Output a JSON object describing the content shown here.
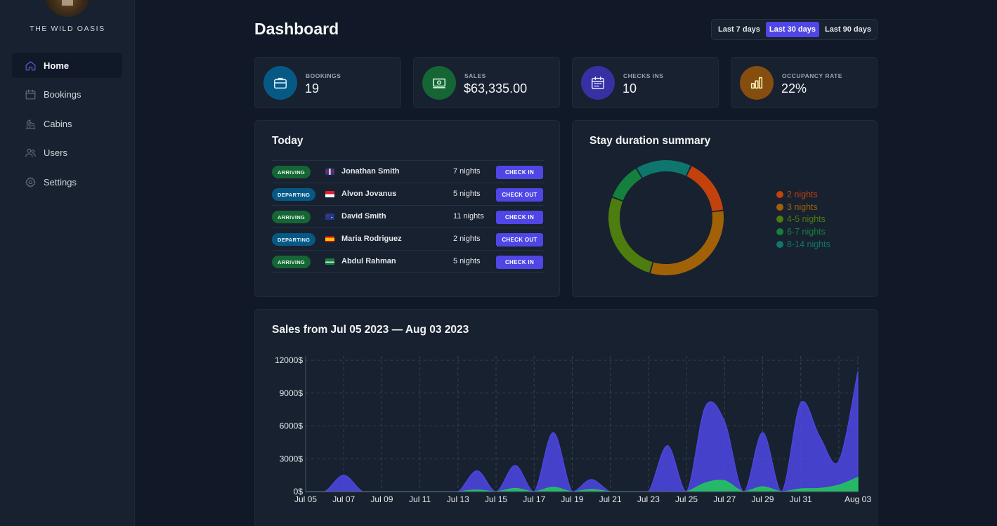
{
  "brand": {
    "name": "THE WILD OASIS"
  },
  "sidebar": {
    "items": [
      {
        "label": "Home",
        "icon": "home-icon",
        "active": true
      },
      {
        "label": "Bookings",
        "icon": "calendar-icon",
        "active": false
      },
      {
        "label": "Cabins",
        "icon": "building-icon",
        "active": false
      },
      {
        "label": "Users",
        "icon": "users-icon",
        "active": false
      },
      {
        "label": "Settings",
        "icon": "gear-icon",
        "active": false
      }
    ]
  },
  "header": {
    "title": "Dashboard",
    "filters": [
      {
        "label": "Last 7 days",
        "active": false
      },
      {
        "label": "Last 30 days",
        "active": true
      },
      {
        "label": "Last 90 days",
        "active": false
      }
    ]
  },
  "stats": [
    {
      "label": "BOOKINGS",
      "value": "19",
      "icon": "briefcase-icon",
      "bg": "#075985",
      "stroke": "#e0f2fe"
    },
    {
      "label": "SALES",
      "value": "$63,335.00",
      "icon": "banknotes-icon",
      "bg": "#166534",
      "stroke": "#dcfce7"
    },
    {
      "label": "CHECKS INS",
      "value": "10",
      "icon": "calendar-days-icon",
      "bg": "#3730a3",
      "stroke": "#e0e7ff"
    },
    {
      "label": "OCCUPANCY RATE",
      "value": "22%",
      "icon": "chart-bar-icon",
      "bg": "#854d0e",
      "stroke": "#fef9c3"
    }
  ],
  "today": {
    "title": "Today",
    "rows": [
      {
        "status": "ARRIVING",
        "type": "arriving",
        "flag": "uk",
        "guest": "Jonathan Smith",
        "nights": "7 nights",
        "action": "CHECK IN"
      },
      {
        "status": "DEPARTING",
        "type": "departing",
        "flag": "id",
        "guest": "Alvon Jovanus",
        "nights": "5 nights",
        "action": "CHECK OUT"
      },
      {
        "status": "ARRIVING",
        "type": "arriving",
        "flag": "au",
        "guest": "David Smith",
        "nights": "11 nights",
        "action": "CHECK IN"
      },
      {
        "status": "DEPARTING",
        "type": "departing",
        "flag": "es",
        "guest": "Maria Rodriguez",
        "nights": "2 nights",
        "action": "CHECK OUT"
      },
      {
        "status": "ARRIVING",
        "type": "arriving",
        "flag": "sa",
        "guest": "Abdul Rahman",
        "nights": "5 nights",
        "action": "CHECK IN"
      }
    ]
  },
  "duration": {
    "title": "Stay duration summary",
    "chart_data": {
      "type": "pie",
      "categories": [
        "2 nights",
        "3 nights",
        "4-5 nights",
        "6-7 nights",
        "8-14 nights"
      ],
      "values": [
        3,
        6,
        5,
        2,
        3
      ],
      "colors": [
        "#c2410c",
        "#a16207",
        "#4d7c0f",
        "#15803d",
        "#0f766e"
      ]
    }
  },
  "sales": {
    "title": "Sales from Jul 05 2023 — Aug 03 2023",
    "chart_data": {
      "type": "area",
      "x": [
        "Jul 05",
        "Jul 06",
        "Jul 07",
        "Jul 08",
        "Jul 09",
        "Jul 10",
        "Jul 11",
        "Jul 12",
        "Jul 13",
        "Jul 14",
        "Jul 15",
        "Jul 16",
        "Jul 17",
        "Jul 18",
        "Jul 19",
        "Jul 20",
        "Jul 21",
        "Jul 22",
        "Jul 23",
        "Jul 24",
        "Jul 25",
        "Jul 26",
        "Jul 27",
        "Jul 28",
        "Jul 29",
        "Jul 30",
        "Jul 31",
        "Aug 01",
        "Aug 02",
        "Aug 03"
      ],
      "tick_labels": [
        "Jul 05",
        "Jul 07",
        "Jul 09",
        "Jul 11",
        "Jul 13",
        "Jul 15",
        "Jul 17",
        "Jul 19",
        "Jul 21",
        "Jul 23",
        "Jul 25",
        "Jul 27",
        "Jul 29",
        "Jul 31",
        "Aug 03"
      ],
      "y_ticks": [
        "0$",
        "3000$",
        "6000$",
        "9000$",
        "12000$"
      ],
      "ylim": [
        0,
        12000
      ],
      "series": [
        {
          "values": [
            0,
            0,
            1500,
            0,
            0,
            0,
            0,
            0,
            0,
            1900,
            0,
            2400,
            0,
            5400,
            0,
            1100,
            0,
            0,
            0,
            4200,
            0,
            7800,
            6400,
            0,
            5400,
            0,
            8100,
            5000,
            2800,
            11000
          ],
          "color": "#4f46e5"
        },
        {
          "values": [
            0,
            0,
            0,
            0,
            0,
            0,
            0,
            0,
            0,
            150,
            0,
            300,
            0,
            400,
            0,
            200,
            0,
            0,
            0,
            0,
            0,
            800,
            1000,
            0,
            450,
            0,
            250,
            300,
            600,
            1300
          ],
          "color": "#22c55e"
        }
      ]
    }
  }
}
